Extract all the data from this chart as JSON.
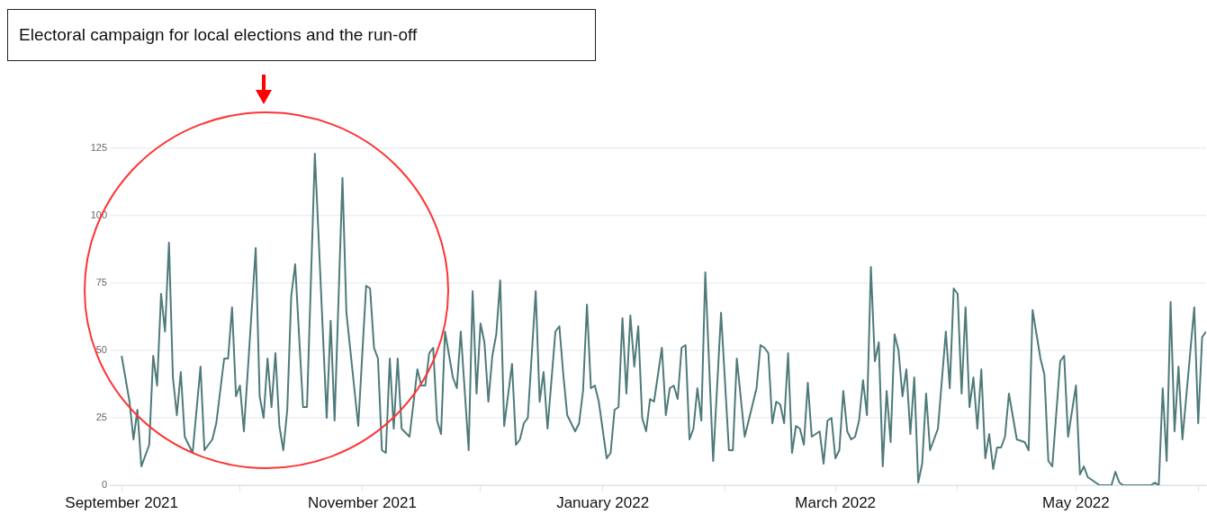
{
  "chart_data": {
    "type": "line",
    "annotations": [
      "Electoral campaign for local elections and the run-off"
    ],
    "x": [
      "2021-09-01",
      "2021-09-03",
      "2021-09-04",
      "2021-09-05",
      "2021-09-06",
      "2021-09-08",
      "2021-09-09",
      "2021-09-10",
      "2021-09-11",
      "2021-09-12",
      "2021-09-13",
      "2021-09-14",
      "2021-09-15",
      "2021-09-16",
      "2021-09-17",
      "2021-09-19",
      "2021-09-21",
      "2021-09-22",
      "2021-09-24",
      "2021-09-25",
      "2021-09-27",
      "2021-09-28",
      "2021-09-29",
      "2021-09-30",
      "2021-10-01",
      "2021-10-02",
      "2021-10-05",
      "2021-10-06",
      "2021-10-07",
      "2021-10-08",
      "2021-10-09",
      "2021-10-10",
      "2021-10-11",
      "2021-10-12",
      "2021-10-13",
      "2021-10-14",
      "2021-10-15",
      "2021-10-17",
      "2021-10-18",
      "2021-10-20",
      "2021-10-23",
      "2021-10-24",
      "2021-10-25",
      "2021-10-27",
      "2021-10-28",
      "2021-10-31",
      "2021-11-02",
      "2021-11-03",
      "2021-11-04",
      "2021-11-05",
      "2021-11-06",
      "2021-11-07",
      "2021-11-08",
      "2021-11-09",
      "2021-11-10",
      "2021-11-11",
      "2021-11-13",
      "2021-11-15",
      "2021-11-16",
      "2021-11-17",
      "2021-11-18",
      "2021-11-19",
      "2021-11-20",
      "2021-11-21",
      "2021-11-22",
      "2021-11-24",
      "2021-11-25",
      "2021-11-26",
      "2021-11-28",
      "2021-11-29",
      "2021-11-30",
      "2021-12-01",
      "2021-12-02",
      "2021-12-03",
      "2021-12-04",
      "2021-12-05",
      "2021-12-06",
      "2021-12-07",
      "2021-12-09",
      "2021-12-10",
      "2021-12-11",
      "2021-12-12",
      "2021-12-13",
      "2021-12-15",
      "2021-12-16",
      "2021-12-17",
      "2021-12-18",
      "2021-12-20",
      "2021-12-21",
      "2021-12-22",
      "2021-12-23",
      "2021-12-25",
      "2021-12-26",
      "2021-12-27",
      "2021-12-28",
      "2021-12-29",
      "2021-12-30",
      "2021-12-31",
      "2022-01-02",
      "2022-01-03",
      "2022-01-04",
      "2022-01-05",
      "2022-01-06",
      "2022-01-07",
      "2022-01-08",
      "2022-01-09",
      "2022-01-10",
      "2022-01-11",
      "2022-01-12",
      "2022-01-13",
      "2022-01-14",
      "2022-01-16",
      "2022-01-17",
      "2022-01-18",
      "2022-01-19",
      "2022-01-20",
      "2022-01-21",
      "2022-01-22",
      "2022-01-23",
      "2022-01-24",
      "2022-01-25",
      "2022-01-26",
      "2022-01-27",
      "2022-01-29",
      "2022-01-31",
      "2022-02-02",
      "2022-02-03",
      "2022-02-04",
      "2022-02-06",
      "2022-02-08",
      "2022-02-09",
      "2022-02-10",
      "2022-02-11",
      "2022-02-12",
      "2022-02-13",
      "2022-02-14",
      "2022-02-15",
      "2022-02-16",
      "2022-02-17",
      "2022-02-18",
      "2022-02-19",
      "2022-02-20",
      "2022-02-21",
      "2022-02-22",
      "2022-02-23",
      "2022-02-25",
      "2022-02-26",
      "2022-02-27",
      "2022-02-28",
      "2022-03-01",
      "2022-03-02",
      "2022-03-03",
      "2022-03-04",
      "2022-03-05",
      "2022-03-06",
      "2022-03-07",
      "2022-03-08",
      "2022-03-09",
      "2022-03-10",
      "2022-03-11",
      "2022-03-12",
      "2022-03-13",
      "2022-03-14",
      "2022-03-15",
      "2022-03-16",
      "2022-03-17",
      "2022-03-18",
      "2022-03-19",
      "2022-03-20",
      "2022-03-21",
      "2022-03-22",
      "2022-03-23",
      "2022-03-24",
      "2022-03-25",
      "2022-03-27",
      "2022-03-29",
      "2022-03-30",
      "2022-03-31",
      "2022-04-01",
      "2022-04-02",
      "2022-04-03",
      "2022-04-04",
      "2022-04-05",
      "2022-04-06",
      "2022-04-07",
      "2022-04-08",
      "2022-04-09",
      "2022-04-10",
      "2022-04-11",
      "2022-04-12",
      "2022-04-13",
      "2022-04-14",
      "2022-04-16",
      "2022-04-18",
      "2022-04-19",
      "2022-04-20",
      "2022-04-22",
      "2022-04-23",
      "2022-04-24",
      "2022-04-25",
      "2022-04-27",
      "2022-04-28",
      "2022-04-29",
      "2022-05-01",
      "2022-05-02",
      "2022-05-03",
      "2022-05-04",
      "2022-05-05",
      "2022-05-06",
      "2022-05-07",
      "2022-05-10",
      "2022-05-11",
      "2022-05-12",
      "2022-05-13",
      "2022-05-20",
      "2022-05-21",
      "2022-05-22",
      "2022-05-23",
      "2022-05-24",
      "2022-05-25",
      "2022-05-26",
      "2022-05-27",
      "2022-05-28",
      "2022-05-31",
      "2022-06-01",
      "2022-06-02",
      "2022-06-03"
    ],
    "series": [
      {
        "color": "#4f7a7a",
        "values": [
          48,
          31,
          17,
          28,
          7,
          15,
          48,
          37,
          71,
          57,
          90,
          40,
          26,
          42,
          18,
          12,
          44,
          13,
          17,
          23,
          47,
          47,
          66,
          33,
          37,
          20,
          88,
          33,
          25,
          47,
          29,
          49,
          22,
          13,
          28,
          70,
          82,
          29,
          29,
          123,
          25,
          61,
          24,
          114,
          64,
          22,
          74,
          73,
          51,
          47,
          13,
          12,
          47,
          21,
          47,
          21,
          18,
          43,
          37,
          37,
          49,
          51,
          24,
          19,
          57,
          40,
          36,
          57,
          13,
          72,
          34,
          60,
          53,
          31,
          48,
          56,
          76,
          22,
          45,
          15,
          17,
          23,
          25,
          72,
          31,
          42,
          21,
          57,
          59,
          41,
          26,
          20,
          23,
          35,
          67,
          36,
          37,
          31,
          10,
          12,
          28,
          29,
          62,
          34,
          63,
          44,
          59,
          25,
          20,
          32,
          31,
          51,
          26,
          36,
          37,
          32,
          51,
          52,
          17,
          21,
          36,
          24,
          79,
          9,
          64,
          13,
          13,
          47,
          18,
          30,
          36,
          52,
          51,
          49,
          23,
          31,
          30,
          23,
          49,
          12,
          22,
          21,
          15,
          38,
          18,
          20,
          8,
          24,
          25,
          10,
          13,
          35,
          20,
          17,
          18,
          24,
          39,
          26,
          81,
          46,
          53,
          7,
          35,
          16,
          56,
          50,
          33,
          43,
          19,
          40,
          1,
          8,
          34,
          13,
          21,
          57,
          36,
          73,
          71,
          34,
          66,
          29,
          40,
          21,
          43,
          10,
          19,
          6,
          14,
          14,
          18,
          34,
          17,
          16,
          13,
          65,
          47,
          41,
          9,
          7,
          46,
          48,
          18,
          37,
          4,
          7,
          3,
          2,
          1,
          0,
          0,
          5,
          1,
          0,
          0,
          1,
          0,
          36,
          9,
          68,
          20,
          44,
          17,
          66,
          23,
          55,
          57
        ]
      }
    ],
    "xlim": [
      "2021-08-29",
      "2022-06-03"
    ],
    "xticks": [
      {
        "value": "2021-09-01",
        "label": "September 2021"
      },
      {
        "value": "2021-10-01",
        "label": null
      },
      {
        "value": "2021-11-01",
        "label": "November 2021"
      },
      {
        "value": "2021-12-01",
        "label": null
      },
      {
        "value": "2022-01-01",
        "label": "January 2022"
      },
      {
        "value": "2022-02-01",
        "label": null
      },
      {
        "value": "2022-03-01",
        "label": "March 2022"
      },
      {
        "value": "2022-04-01",
        "label": null
      },
      {
        "value": "2022-05-01",
        "label": "May 2022"
      },
      {
        "value": "2022-06-01",
        "label": null
      }
    ],
    "ylim": [
      0,
      125
    ],
    "yticks": [
      0,
      25,
      50,
      75,
      100,
      125
    ],
    "grid": "y",
    "legend": false,
    "marker": "none",
    "line_style": "solid"
  }
}
